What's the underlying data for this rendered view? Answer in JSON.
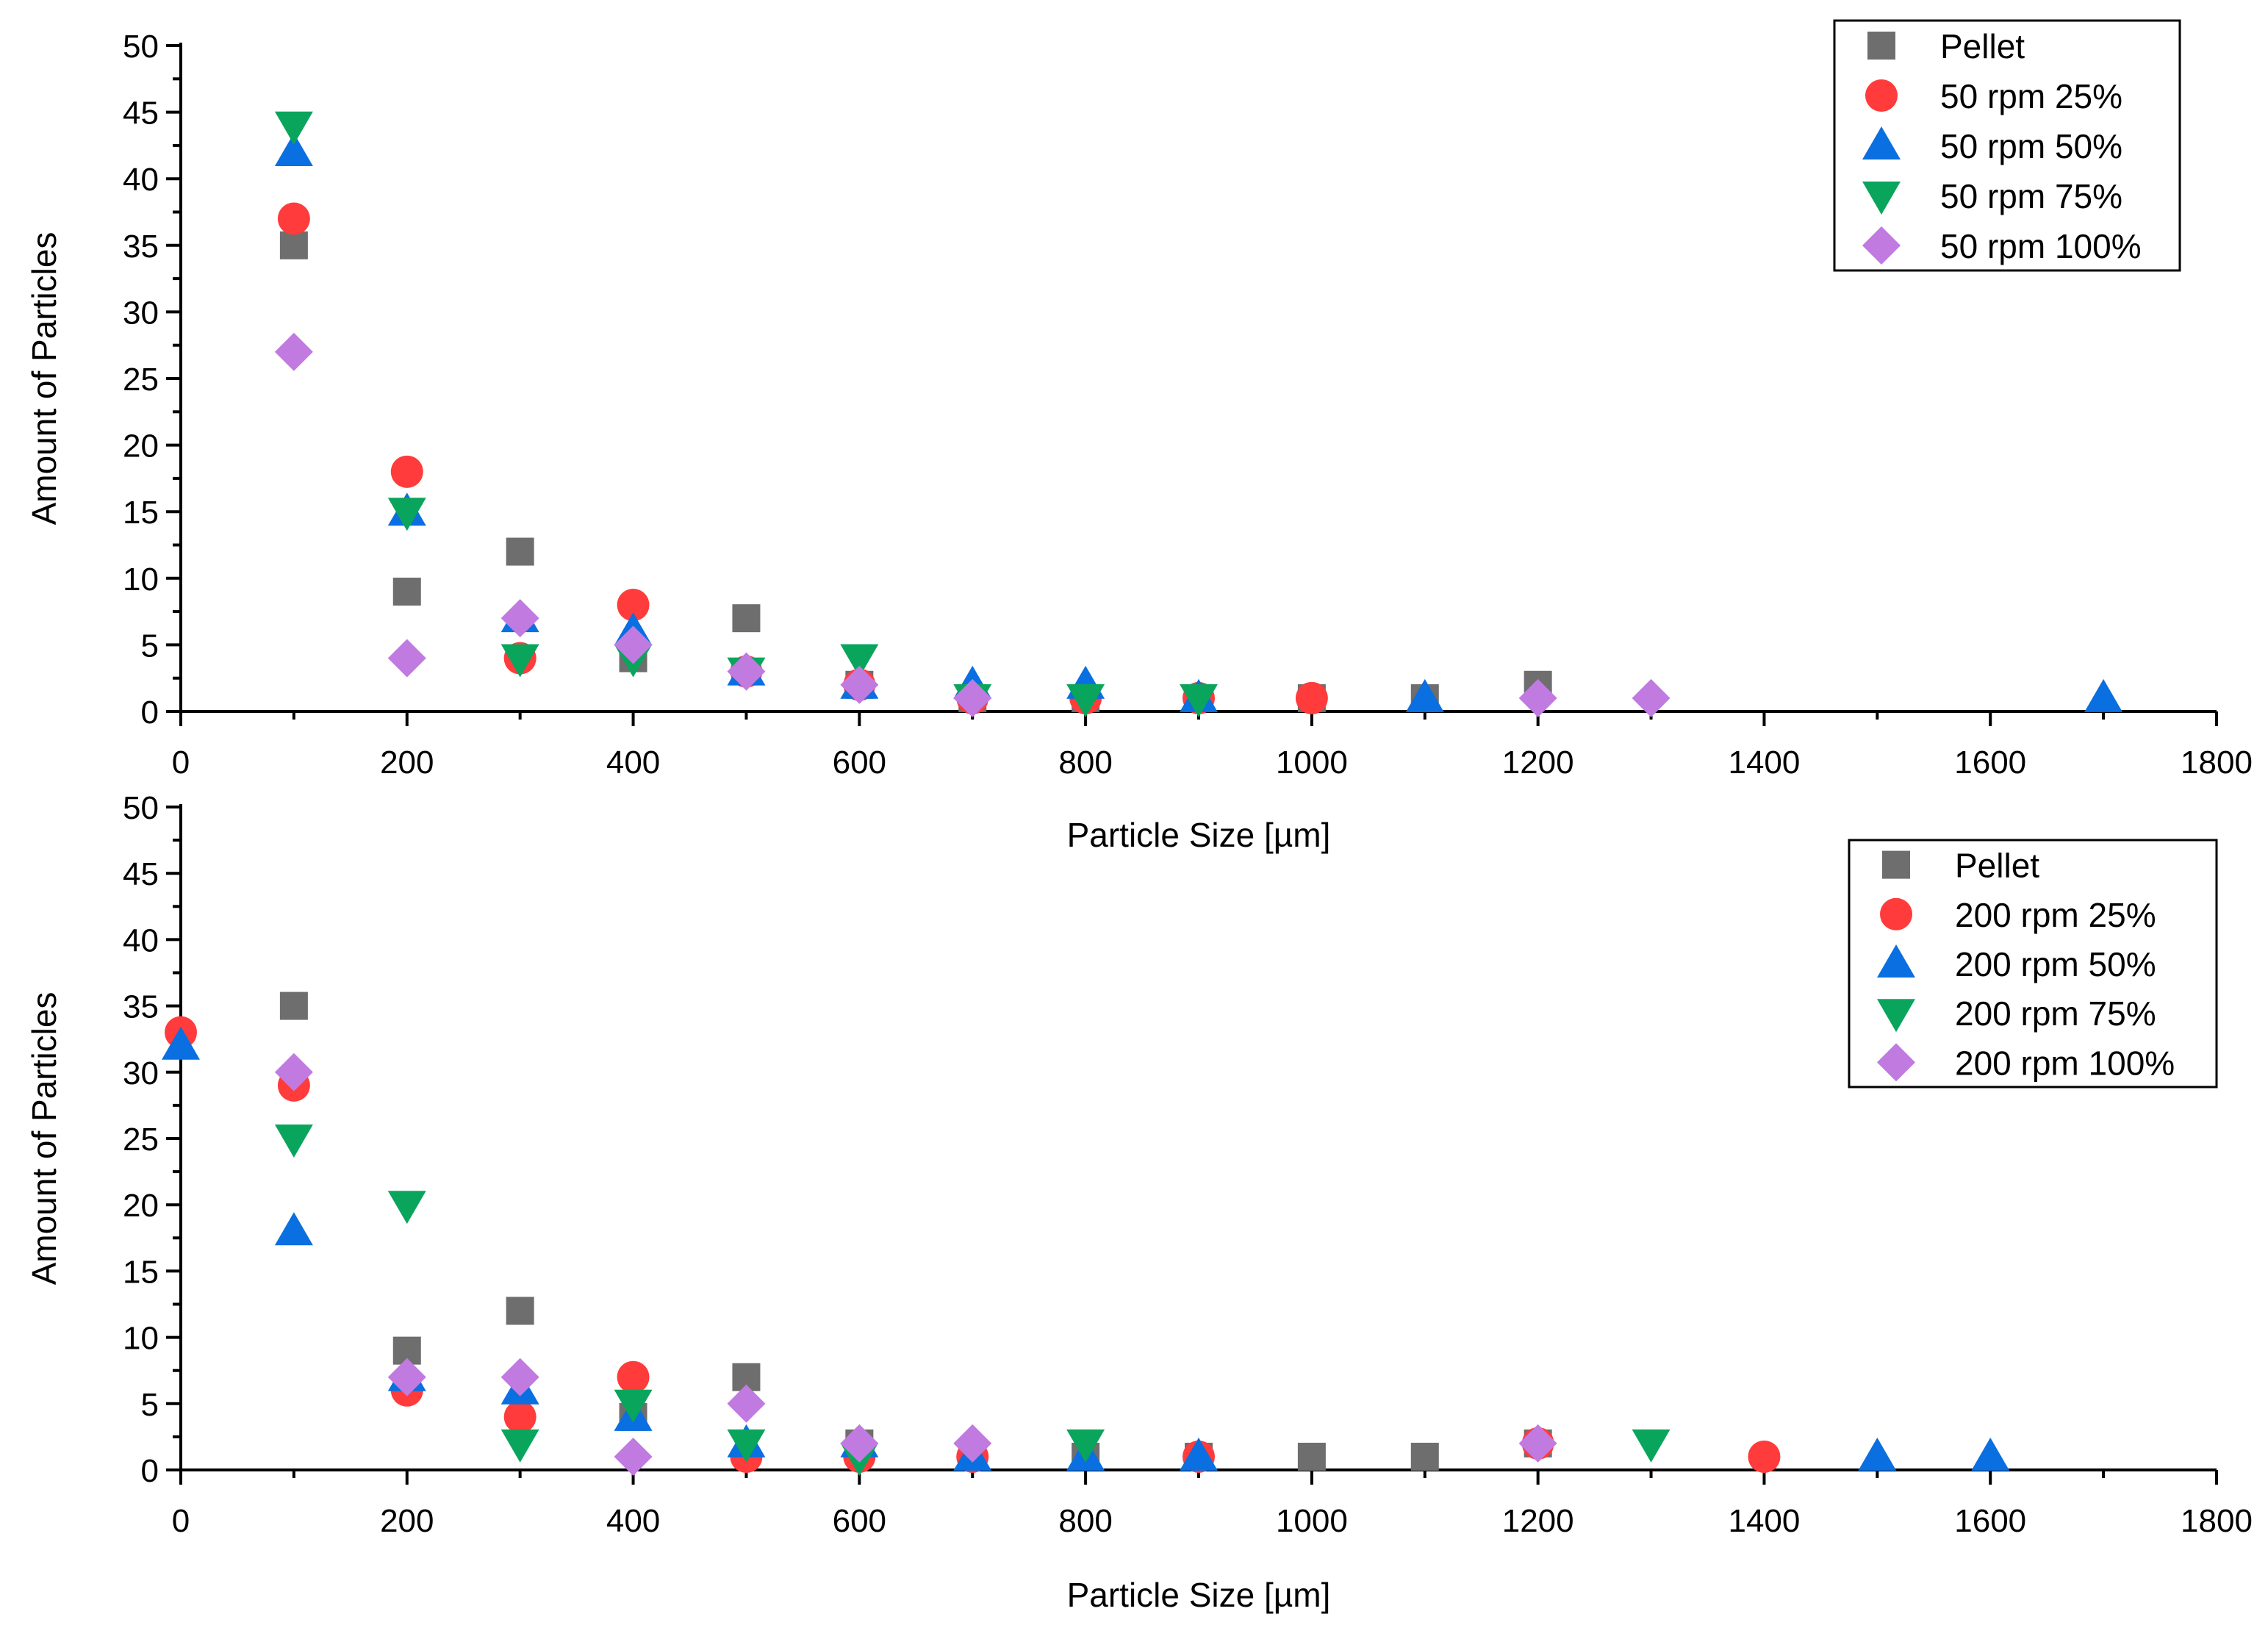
{
  "chart_data": [
    {
      "type": "scatter",
      "xlabel": "Particle Size [µm]",
      "ylabel": "Amount of Particles",
      "xlim": [
        0,
        1800
      ],
      "ylim": [
        0,
        50
      ],
      "xticks": [
        0,
        200,
        400,
        600,
        800,
        1000,
        1200,
        1400,
        1600,
        1800
      ],
      "yticks": [
        0,
        5,
        10,
        15,
        20,
        25,
        30,
        35,
        40,
        45,
        50
      ],
      "grid": false,
      "legend_position": "top-right",
      "series": [
        {
          "name": "Pellet",
          "marker": "square",
          "color": "#6e6e6e",
          "x": [
            100,
            200,
            300,
            400,
            500,
            600,
            700,
            800,
            900,
            1000,
            1100,
            1200
          ],
          "y": [
            35,
            9,
            12,
            4,
            7,
            2,
            1,
            1,
            1,
            1,
            1,
            2
          ]
        },
        {
          "name": "50 rpm 25%",
          "marker": "circle",
          "color": "#ff3b3b",
          "x": [
            100,
            200,
            300,
            400,
            500,
            600,
            700,
            800,
            900,
            1000
          ],
          "y": [
            37,
            18,
            4,
            8,
            3,
            2,
            1,
            1,
            1,
            1
          ]
        },
        {
          "name": "50 rpm 50%",
          "marker": "triangle-up",
          "color": "#0a6fe0",
          "x": [
            100,
            200,
            300,
            400,
            500,
            600,
            700,
            800,
            900,
            1100,
            1700
          ],
          "y": [
            42,
            15,
            7,
            6,
            3,
            2,
            2,
            2,
            1,
            1,
            1
          ]
        },
        {
          "name": "50 rpm 75%",
          "marker": "triangle-down",
          "color": "#0aa55c",
          "x": [
            100,
            200,
            300,
            400,
            500,
            600,
            700,
            800,
            900
          ],
          "y": [
            44,
            15,
            4,
            4,
            3,
            4,
            1,
            1,
            1
          ]
        },
        {
          "name": "50 rpm 100%",
          "marker": "diamond",
          "color": "#c07ae0",
          "x": [
            100,
            200,
            300,
            400,
            500,
            600,
            700,
            1200,
            1300
          ],
          "y": [
            27,
            4,
            7,
            5,
            3,
            2,
            1,
            1,
            1
          ]
        }
      ]
    },
    {
      "type": "scatter",
      "xlabel": "Particle Size [µm]",
      "ylabel": "Amount of Particles",
      "xlim": [
        0,
        1800
      ],
      "ylim": [
        0,
        50
      ],
      "xticks": [
        0,
        200,
        400,
        600,
        800,
        1000,
        1200,
        1400,
        1600,
        1800
      ],
      "yticks": [
        0,
        5,
        10,
        15,
        20,
        25,
        30,
        35,
        40,
        45,
        50
      ],
      "grid": false,
      "legend_position": "top-right",
      "series": [
        {
          "name": "Pellet",
          "marker": "square",
          "color": "#6e6e6e",
          "x": [
            100,
            200,
            300,
            400,
            500,
            600,
            700,
            800,
            900,
            1000,
            1100,
            1200
          ],
          "y": [
            35,
            9,
            12,
            4,
            7,
            2,
            1,
            1,
            1,
            1,
            1,
            2
          ]
        },
        {
          "name": "200 rpm 25%",
          "marker": "circle",
          "color": "#ff3b3b",
          "x": [
            0,
            100,
            200,
            300,
            400,
            500,
            600,
            700,
            900,
            1200,
            1400
          ],
          "y": [
            33,
            29,
            6,
            4,
            7,
            1,
            1,
            1,
            1,
            2,
            1
          ]
        },
        {
          "name": "200 rpm 50%",
          "marker": "triangle-up",
          "color": "#0a6fe0",
          "x": [
            0,
            100,
            200,
            300,
            400,
            500,
            600,
            700,
            800,
            900,
            1500,
            1600
          ],
          "y": [
            32,
            18,
            7,
            6,
            4,
            2,
            2,
            1,
            1,
            1,
            1,
            1
          ]
        },
        {
          "name": "200 rpm 75%",
          "marker": "triangle-down",
          "color": "#0aa55c",
          "x": [
            100,
            200,
            300,
            400,
            500,
            600,
            800,
            1300
          ],
          "y": [
            25,
            20,
            2,
            5,
            2,
            1,
            2,
            2
          ]
        },
        {
          "name": "200 rpm 100%",
          "marker": "diamond",
          "color": "#c07ae0",
          "x": [
            100,
            200,
            300,
            400,
            500,
            600,
            700,
            1200
          ],
          "y": [
            30,
            7,
            7,
            1,
            5,
            2,
            2,
            2
          ]
        }
      ]
    }
  ]
}
